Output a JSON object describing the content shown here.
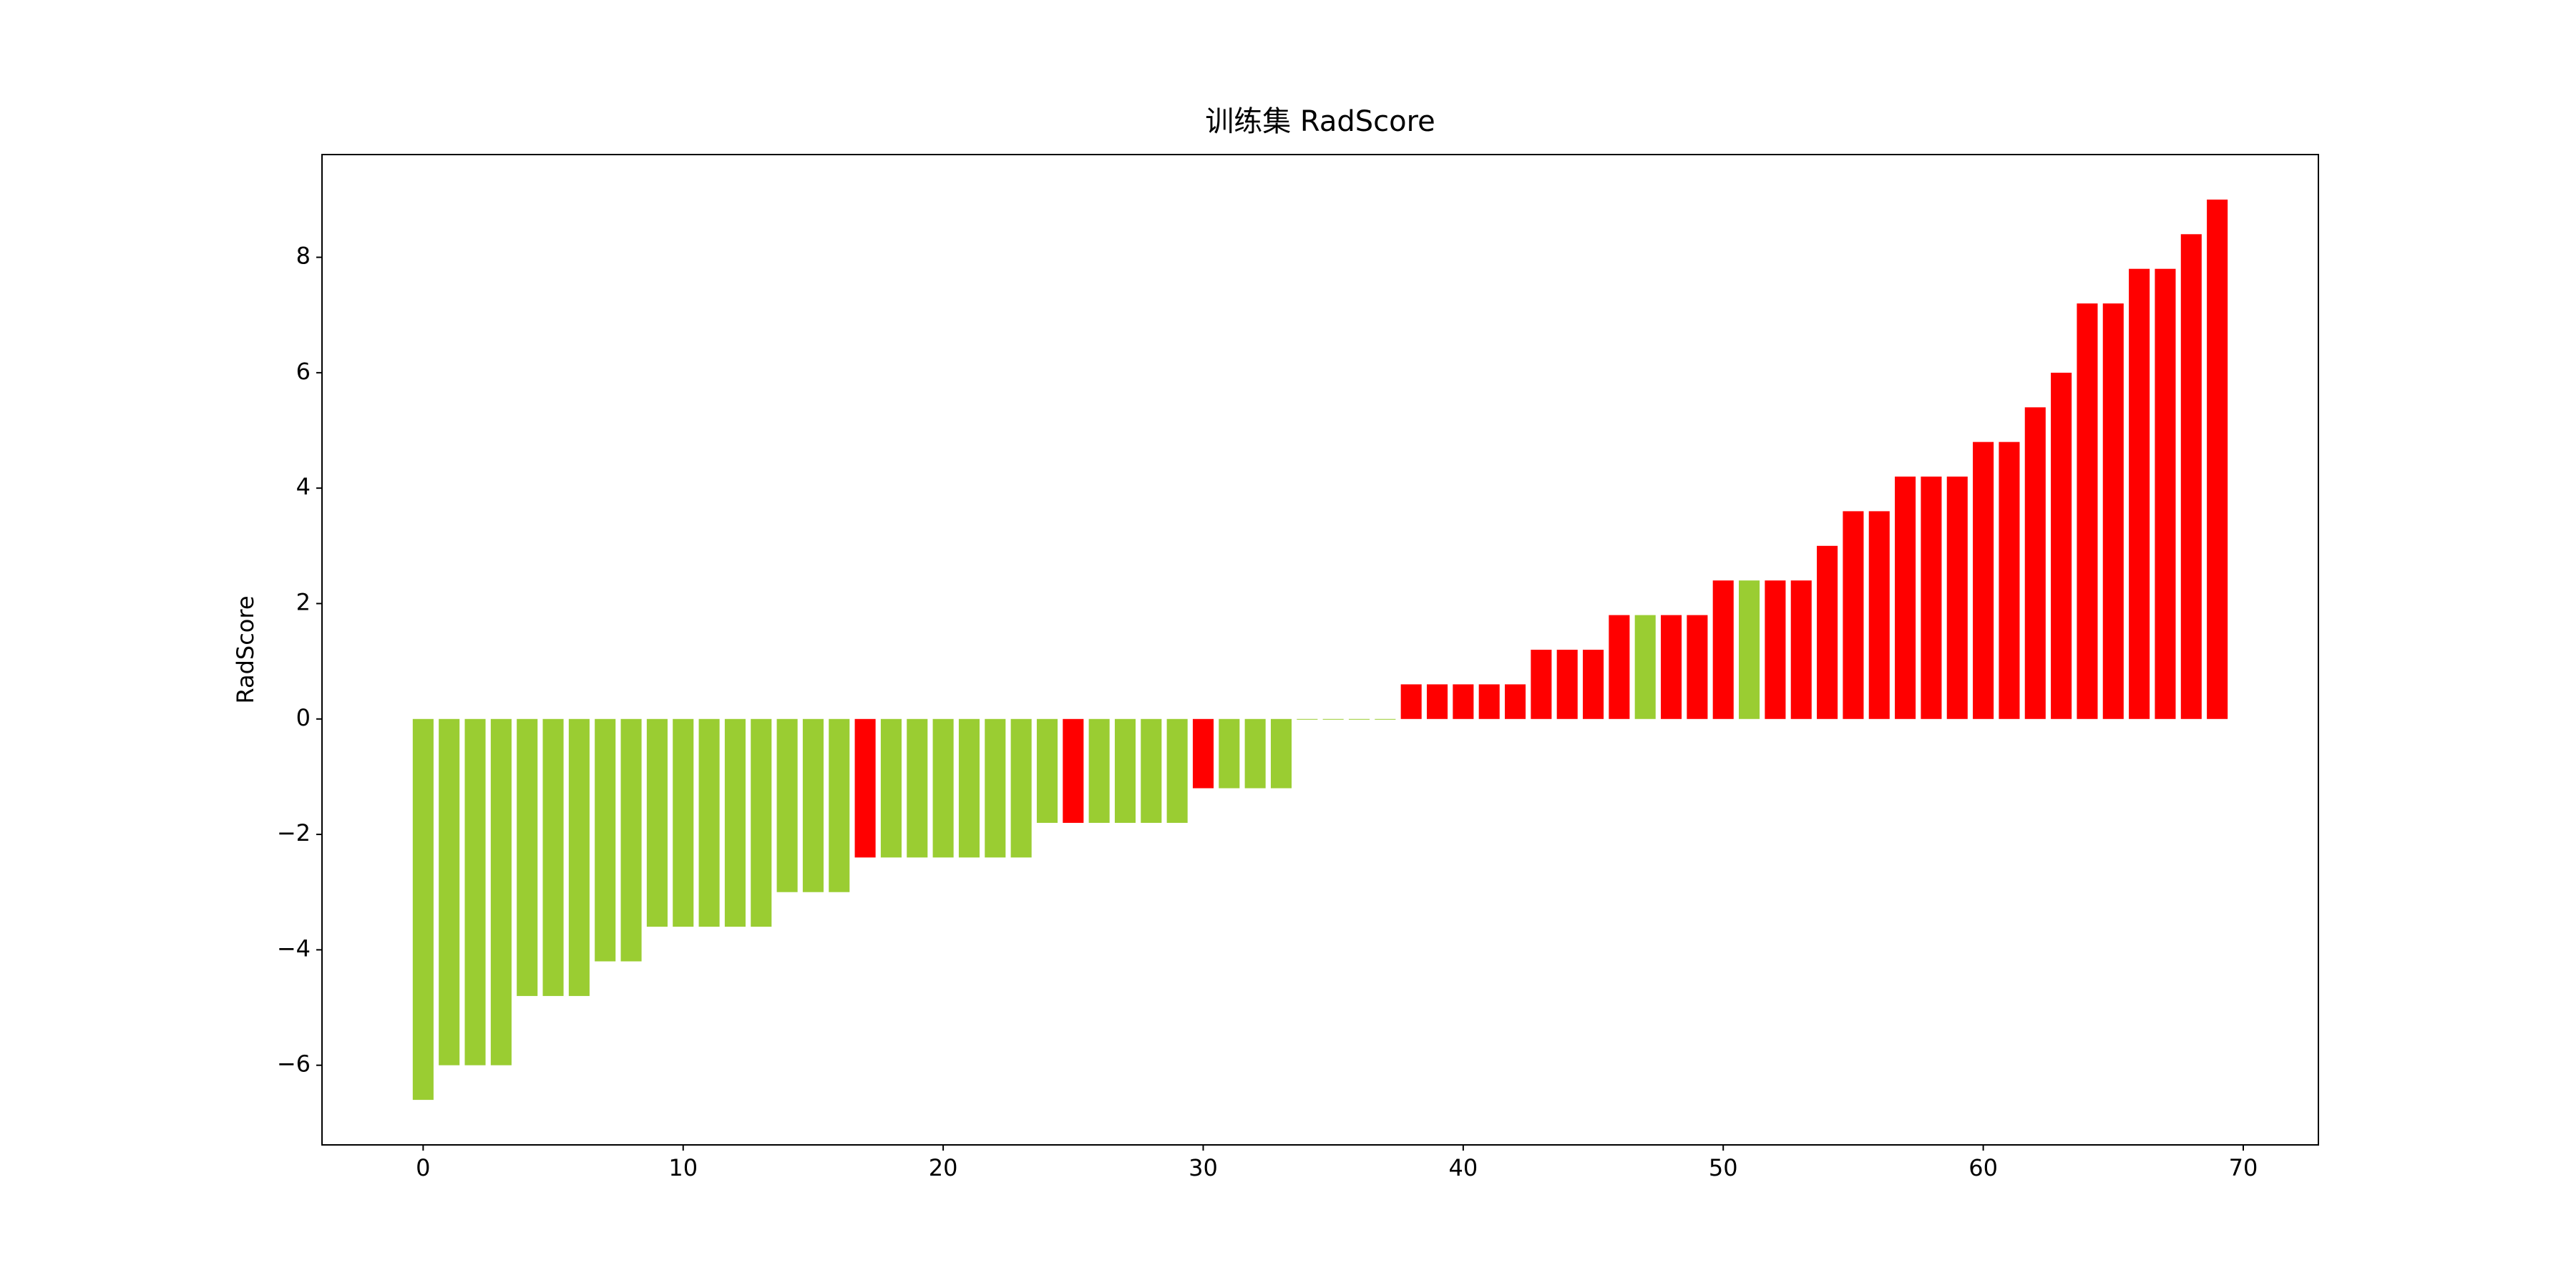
{
  "chart_data": {
    "type": "bar",
    "title": "训练集 RadScore",
    "ylabel": "RadScore",
    "x": [
      0,
      1,
      2,
      3,
      4,
      5,
      6,
      7,
      8,
      9,
      10,
      11,
      12,
      13,
      14,
      15,
      16,
      17,
      18,
      19,
      20,
      21,
      22,
      23,
      24,
      25,
      26,
      27,
      28,
      29,
      30,
      31,
      32,
      33,
      34,
      35,
      36,
      37,
      38,
      39,
      40,
      41,
      42,
      43,
      44,
      45,
      46,
      47,
      48,
      49,
      50,
      51,
      52,
      53,
      54,
      55,
      56,
      57,
      58,
      59,
      60,
      61,
      62,
      63,
      64,
      65,
      66,
      67,
      68,
      69
    ],
    "values": [
      -6.6,
      -6.0,
      -6.0,
      -6.0,
      -4.8,
      -4.8,
      -4.8,
      -4.2,
      -4.2,
      -3.6,
      -3.6,
      -3.6,
      -3.6,
      -3.6,
      -3.0,
      -3.0,
      -3.0,
      -2.4,
      -2.4,
      -2.4,
      -2.4,
      -2.4,
      -2.4,
      -2.4,
      -1.8,
      -1.8,
      -1.8,
      -1.8,
      -1.8,
      -1.8,
      -1.2,
      -1.2,
      -1.2,
      -1.2,
      0,
      0,
      0,
      0,
      0.6,
      0.6,
      0.6,
      0.6,
      0.6,
      1.2,
      1.2,
      1.2,
      1.8,
      1.8,
      1.8,
      1.8,
      2.4,
      2.4,
      2.4,
      2.4,
      3.0,
      3.6,
      3.6,
      4.2,
      4.2,
      4.2,
      4.8,
      4.8,
      5.4,
      6.0,
      7.2,
      7.2,
      7.8,
      7.8,
      8.4,
      9.0
    ],
    "colors": [
      "#9acd32",
      "#9acd32",
      "#9acd32",
      "#9acd32",
      "#9acd32",
      "#9acd32",
      "#9acd32",
      "#9acd32",
      "#9acd32",
      "#9acd32",
      "#9acd32",
      "#9acd32",
      "#9acd32",
      "#9acd32",
      "#9acd32",
      "#9acd32",
      "#9acd32",
      "#ff0000",
      "#9acd32",
      "#9acd32",
      "#9acd32",
      "#9acd32",
      "#9acd32",
      "#9acd32",
      "#9acd32",
      "#ff0000",
      "#9acd32",
      "#9acd32",
      "#9acd32",
      "#9acd32",
      "#ff0000",
      "#9acd32",
      "#9acd32",
      "#9acd32",
      "#9acd32",
      "#9acd32",
      "#9acd32",
      "#9acd32",
      "#ff0000",
      "#ff0000",
      "#ff0000",
      "#ff0000",
      "#ff0000",
      "#ff0000",
      "#ff0000",
      "#ff0000",
      "#ff0000",
      "#9acd32",
      "#ff0000",
      "#ff0000",
      "#ff0000",
      "#9acd32",
      "#ff0000",
      "#ff0000",
      "#ff0000",
      "#ff0000",
      "#ff0000",
      "#ff0000",
      "#ff0000",
      "#ff0000",
      "#ff0000",
      "#ff0000",
      "#ff0000",
      "#ff0000",
      "#ff0000",
      "#ff0000",
      "#ff0000",
      "#ff0000",
      "#ff0000",
      "#ff0000"
    ],
    "bar_width": 0.8,
    "xlim": [
      -3.89,
      72.89
    ],
    "xticks": [
      0,
      10,
      20,
      30,
      40,
      50,
      60,
      70
    ],
    "ylim": [
      -7.38,
      9.78
    ],
    "yticks": [
      {
        "value": -6,
        "label": "−6"
      },
      {
        "value": -4,
        "label": "−4"
      },
      {
        "value": -2,
        "label": "−2"
      },
      0,
      2,
      4,
      6,
      8
    ],
    "grid": false
  }
}
